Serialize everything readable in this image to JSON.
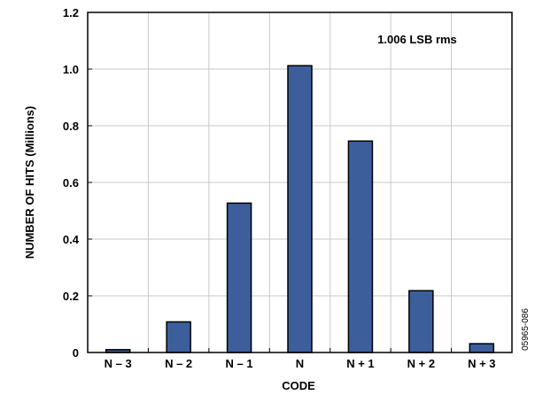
{
  "chart_data": {
    "type": "bar",
    "categories": [
      "N – 3",
      "N – 2",
      "N – 1",
      "N",
      "N + 1",
      "N + 2",
      "N + 3"
    ],
    "values": [
      0.01,
      0.108,
      0.527,
      1.012,
      0.746,
      0.218,
      0.031
    ],
    "xlabel": "CODE",
    "ylabel": "NUMBER OF HITS (Millions)",
    "ylim": [
      0,
      1.2
    ],
    "yticks": [
      "0",
      "0.2",
      "0.4",
      "0.6",
      "0.8",
      "1.0",
      "1.2"
    ],
    "grid": true,
    "bar_color": "#3c5f9c",
    "annotation": "1.006 LSB rms",
    "figure_id": "05965-086"
  }
}
